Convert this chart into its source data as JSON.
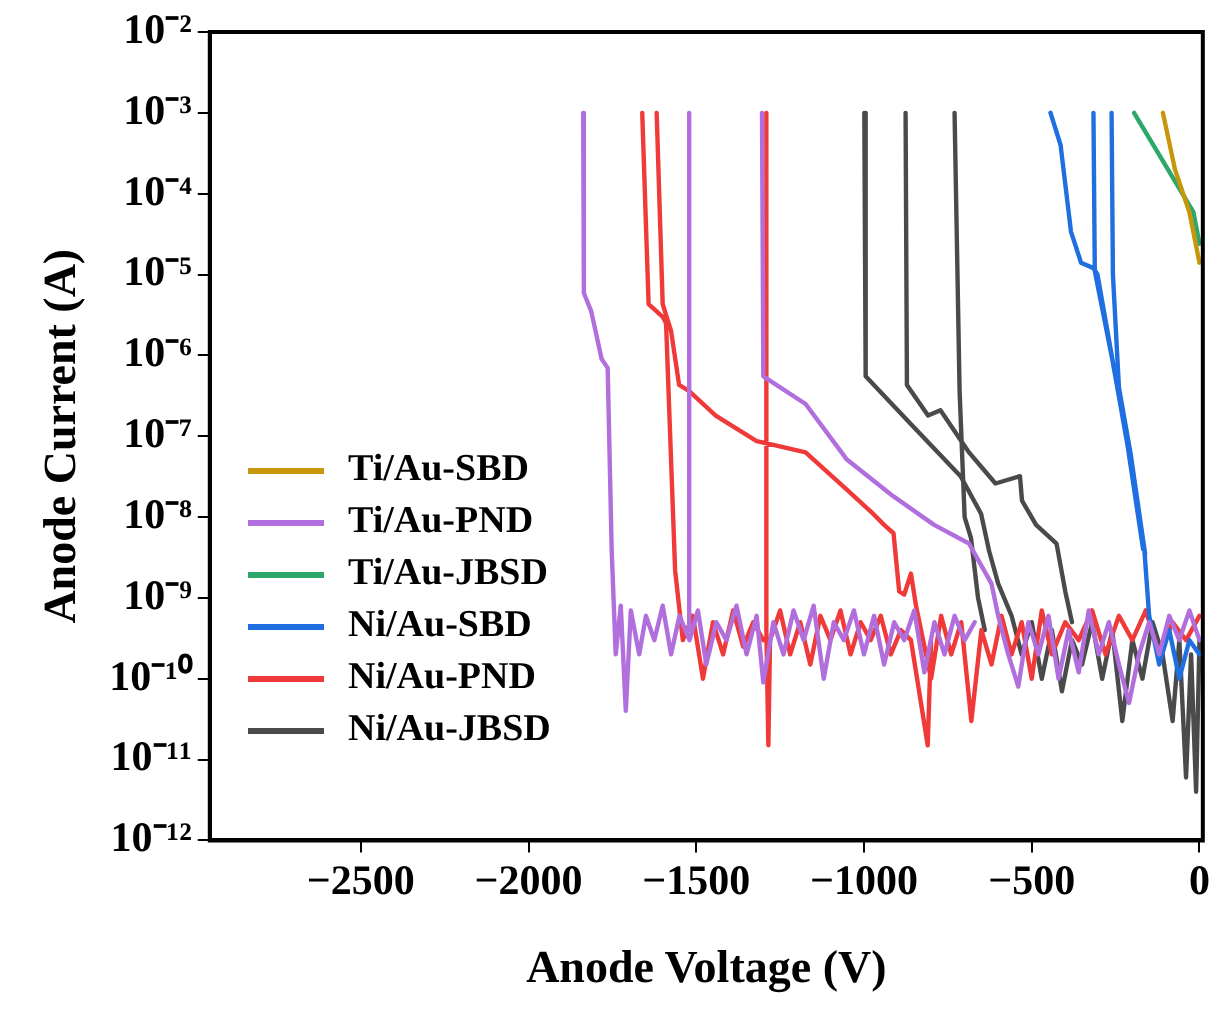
{
  "chart_data": {
    "type": "line",
    "xlabel": "Anode Voltage (V)",
    "ylabel": "Anode Current (A)",
    "log": "y",
    "grid": false,
    "legend": "center left",
    "marker": "none",
    "line_style": "solid",
    "xlim": [
      -2950,
      10
    ],
    "xticks": [
      {
        "value": -2500,
        "label": "−2500"
      },
      {
        "value": -2000,
        "label": "−2000"
      },
      {
        "value": -1500,
        "label": "−1500"
      },
      {
        "value": -1000,
        "label": "−1000"
      },
      {
        "value": -500,
        "label": "−500"
      },
      0
    ],
    "ylim": [
      1e-12,
      0.01
    ],
    "yticks": [
      {
        "value": 1e-12,
        "label": "10⁻¹²"
      },
      {
        "value": 1e-11,
        "label": "10⁻¹¹"
      },
      {
        "value": 1e-10,
        "label": "10⁻¹⁰"
      },
      {
        "value": 1e-09,
        "label": "10⁻⁹"
      },
      {
        "value": 1e-08,
        "label": "10⁻⁸"
      },
      {
        "value": 1e-07,
        "label": "10⁻⁷"
      },
      {
        "value": 1e-06,
        "label": "10⁻⁶"
      },
      {
        "value": 1e-05,
        "label": "10⁻⁵"
      },
      {
        "value": 0.0001,
        "label": "10⁻⁴"
      },
      {
        "value": 0.001,
        "label": "10⁻³"
      },
      {
        "value": 0.01,
        "label": "10⁻²"
      }
    ],
    "series": [
      {
        "name": "Ti/Au-SBD",
        "color": "#c8960a",
        "x": [
          -109,
          -73,
          -30,
          0
        ],
        "values": [
          0.001,
          0.0002,
          5.9e-05,
          1.4e-05
        ]
      },
      {
        "name": "Ti/Au-PND",
        "color": "#b06fdc",
        "x": [
          -1837,
          -1835,
          -1813,
          -1782,
          -1764,
          -1752,
          -1740,
          -1725,
          -1710,
          -1695,
          -1670,
          -1650,
          -1625,
          -1600,
          -1575,
          -1550,
          -1520,
          -1495,
          -1470,
          -1440,
          -1410,
          -1380,
          -1350,
          -1320,
          -1300,
          -1270,
          -1240,
          -1210,
          -1180,
          -1150,
          -1120,
          -1090,
          -1060,
          -1030,
          -1000,
          -970,
          -940,
          -910,
          -880,
          -850,
          -820,
          -790,
          -760,
          -730,
          -700,
          -670,
          null,
          -1521,
          -1521,
          null,
          -1304,
          -1300,
          -1174,
          -1052,
          -912,
          -791,
          -687,
          -620,
          -600,
          -570,
          -540,
          -510,
          -480,
          -450,
          -420,
          -390,
          -360,
          -330,
          -300,
          -270,
          -240,
          -210,
          -180,
          -150,
          -120,
          -90,
          -60,
          -30,
          0
        ],
        "values": [
          0.001,
          5.9e-06,
          3.5e-06,
          9e-07,
          7e-07,
          3.8e-09,
          2e-10,
          8e-10,
          4e-11,
          7e-10,
          2e-10,
          6e-10,
          3e-10,
          8e-10,
          2e-10,
          6e-10,
          3e-10,
          7e-10,
          1.5e-10,
          5e-10,
          3e-10,
          8e-10,
          2e-10,
          6e-10,
          9e-11,
          5e-10,
          2e-10,
          7e-10,
          3e-10,
          8e-10,
          1e-10,
          5e-10,
          3e-10,
          7e-10,
          2e-10,
          6e-10,
          1.5e-10,
          5e-10,
          3e-10,
          7e-10,
          1.2e-10,
          5e-10,
          2e-10,
          6e-10,
          3e-10,
          5e-10,
          null,
          0.001,
          4e-10,
          null,
          0.001,
          5.5e-07,
          2.5e-07,
          5.2e-08,
          1.8e-08,
          8e-09,
          4.7e-09,
          1.5e-09,
          6e-10,
          2e-10,
          8e-11,
          5e-10,
          2e-10,
          6e-10,
          1e-10,
          4e-10,
          1.2e-10,
          7e-10,
          2e-10,
          5e-10,
          1.5e-10,
          5e-11,
          2e-10,
          5e-10,
          2e-10,
          6e-10,
          3e-10,
          7e-10,
          3e-10
        ]
      },
      {
        "name": "Ti/Au-JBSD",
        "color": "#2ea86a",
        "x": [
          -195,
          -103,
          -18,
          0
        ],
        "values": [
          0.001,
          0.00023,
          5.9e-05,
          2.4e-05
        ]
      },
      {
        "name": "Ni/Au-SBD",
        "color": "#1f6fe0",
        "x": [
          -444,
          -414,
          -383,
          -353,
          -316,
          -304,
          -255,
          -213,
          -164,
          -150,
          -120,
          -90,
          -60,
          -30,
          0,
          null,
          -316,
          -312,
          -260,
          -215,
          -168,
          null,
          -262,
          -258,
          -240,
          -205,
          -162
        ],
        "values": [
          0.001,
          0.0004,
          3.4e-05,
          1.4e-05,
          1.2e-05,
          1e-05,
          7e-07,
          7.4e-08,
          3.8e-09,
          6e-10,
          1.5e-10,
          4e-10,
          1e-10,
          3e-10,
          2e-10,
          null,
          0.001,
          1.1e-05,
          9e-07,
          8e-08,
          4e-09,
          null,
          0.001,
          1e-05,
          4e-07,
          6e-08,
          3.5e-09
        ]
      },
      {
        "name": "Ni/Au-PND",
        "color": "#f03a3a",
        "x": [
          -1661,
          -1642,
          -1600,
          -1590,
          -1563,
          -1540,
          -1510,
          -1480,
          -1450,
          -1420,
          -1390,
          -1360,
          -1330,
          -1300,
          null,
          -1618,
          -1600,
          -1575,
          -1551,
          -1521,
          -1442,
          -1320,
          -1174,
          -1052,
          -973,
          -940,
          -912,
          -895,
          -880,
          -860,
          -845,
          -830,
          -800,
          -770,
          -740,
          -710,
          -680,
          -650,
          -620,
          -590,
          -560,
          -530,
          -500,
          -470,
          -440,
          -400,
          -360,
          -320,
          -280,
          -240,
          -200,
          -160,
          -120,
          -80,
          -40,
          0,
          null,
          -1291,
          -1291,
          -1285,
          -1280,
          -1250,
          -1220,
          -1190,
          -1160,
          -1130,
          -1100,
          -1070,
          -1040,
          -1010,
          -980,
          -950,
          -920,
          -890,
          -860,
          -810,
          -800
        ],
        "values": [
          0.001,
          4.3e-06,
          3e-06,
          2.5e-06,
          2.2e-09,
          3e-10,
          6e-10,
          1e-10,
          5e-10,
          2e-10,
          7e-10,
          2.5e-10,
          5e-10,
          3e-10,
          null,
          0.001,
          4.3e-06,
          2e-06,
          4.3e-07,
          3.6e-07,
          1.8e-07,
          8.7e-08,
          6.3e-08,
          2.2e-08,
          1.1e-08,
          8e-09,
          6.3e-09,
          1.2e-09,
          1.1e-09,
          2e-09,
          8e-10,
          4e-10,
          1e-10,
          6e-10,
          2e-10,
          5e-10,
          3e-11,
          4e-10,
          1.5e-10,
          6e-10,
          2e-10,
          5e-10,
          1e-10,
          7e-10,
          2e-10,
          5e-10,
          3e-10,
          7e-10,
          2e-10,
          6e-10,
          3e-10,
          7e-10,
          2e-10,
          5e-10,
          3e-10,
          6e-10,
          null,
          0.001,
          4e-10,
          1.5e-11,
          3e-10,
          7e-10,
          2e-10,
          5e-10,
          1.5e-10,
          6e-10,
          3e-10,
          7e-10,
          2e-10,
          5e-10,
          3e-10,
          6e-10,
          2e-10,
          4e-10,
          3e-10,
          1.5e-11,
          3e-10
        ]
      },
      {
        "name": "Ni/Au-JBSD",
        "color": "#4a4a4a",
        "x": [
          -999,
          -995,
          -852,
          -712,
          -651,
          -627,
          -600,
          -560,
          -530,
          -500,
          -470,
          -440,
          -410,
          -380,
          -350,
          -320,
          -290,
          -260,
          -230,
          -200,
          -170,
          -140,
          -110,
          -80,
          -60,
          -40,
          -25,
          -10,
          0,
          null,
          -876,
          -872,
          -809,
          -772,
          -687,
          -608,
          -535,
          -529,
          -487,
          -426,
          -400,
          -380,
          null,
          -730,
          -715,
          -700,
          -681,
          -660,
          -640
        ],
        "values": [
          0.001,
          5.5e-07,
          1.3e-07,
          3.2e-08,
          1.1e-08,
          3.8e-09,
          1.5e-09,
          6e-10,
          2e-10,
          5e-10,
          1e-10,
          4e-10,
          7e-11,
          3e-10,
          1.5e-10,
          5e-10,
          1e-10,
          4e-10,
          3e-11,
          3e-10,
          1e-10,
          5e-10,
          2e-10,
          3e-11,
          3e-10,
          6e-12,
          2e-10,
          4e-12,
          3e-10,
          null,
          0.001,
          4.3e-07,
          1.8e-07,
          2.1e-07,
          6.3e-08,
          2.6e-08,
          3.2e-08,
          1.6e-08,
          8e-09,
          4.7e-09,
          1.2e-09,
          5e-10,
          null,
          0.001,
          3.6e-07,
          1e-08,
          5.5e-09,
          1e-09,
          4e-10
        ]
      }
    ]
  }
}
